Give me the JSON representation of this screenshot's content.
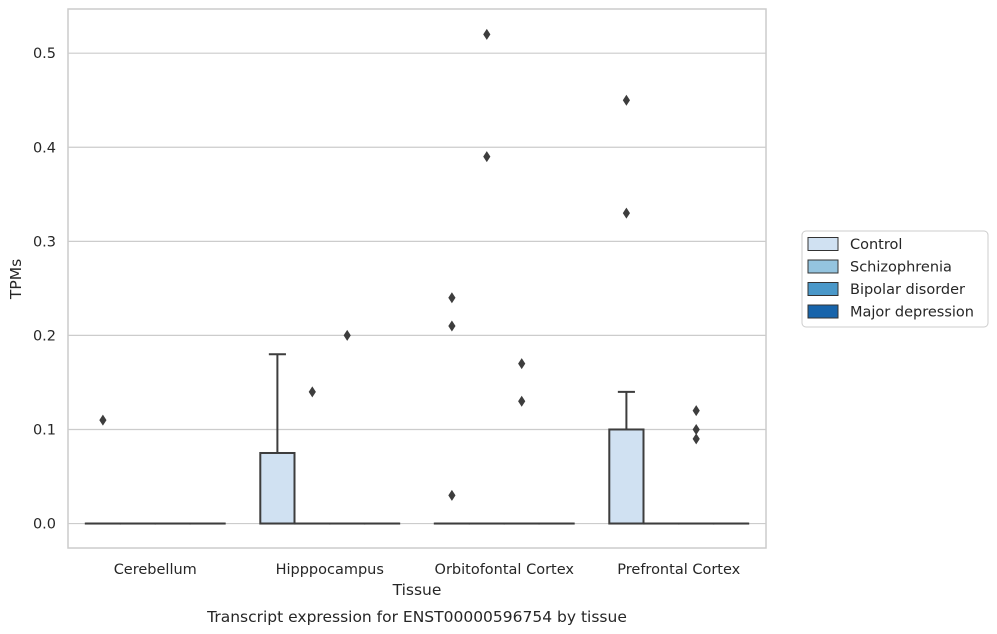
{
  "chart_data": {
    "type": "box",
    "title": "",
    "caption": "Transcript expression for ENST00000596754 by tissue",
    "xlabel": "Tissue",
    "ylabel": "TPMs",
    "ylim": [
      -0.026,
      0.547
    ],
    "yticks": [
      "0.0",
      "0.1",
      "0.2",
      "0.3",
      "0.4",
      "0.5"
    ],
    "grid": true,
    "legend_position": "right",
    "categories": [
      "Cerebellum",
      "Hipppocampus",
      "Orbitofontal Cortex",
      "Prefrontal Cortex"
    ],
    "series": [
      {
        "name": "Control",
        "color": "#d0e1f2",
        "boxes": [
          {
            "q1": 0,
            "median": 0,
            "q3": 0,
            "whisker_low": 0,
            "whisker_high": 0,
            "outliers": [
              0.11
            ]
          },
          {
            "q1": 0,
            "median": 0,
            "q3": 0.075,
            "whisker_low": 0,
            "whisker_high": 0.18,
            "outliers": []
          },
          {
            "q1": 0,
            "median": 0,
            "q3": 0,
            "whisker_low": 0,
            "whisker_high": 0,
            "outliers": [
              0.03,
              0.21,
              0.24
            ]
          },
          {
            "q1": 0,
            "median": 0,
            "q3": 0.1,
            "whisker_low": 0,
            "whisker_high": 0.14,
            "outliers": [
              0.33,
              0.45
            ]
          }
        ]
      },
      {
        "name": "Schizophrenia",
        "color": "#94c4df",
        "boxes": [
          {
            "q1": 0,
            "median": 0,
            "q3": 0,
            "whisker_low": 0,
            "whisker_high": 0,
            "outliers": []
          },
          {
            "q1": 0,
            "median": 0,
            "q3": 0,
            "whisker_low": 0,
            "whisker_high": 0,
            "outliers": [
              0.14
            ]
          },
          {
            "q1": 0,
            "median": 0,
            "q3": 0,
            "whisker_low": 0,
            "whisker_high": 0,
            "outliers": [
              0.39,
              0.52
            ]
          },
          {
            "q1": 0,
            "median": 0,
            "q3": 0,
            "whisker_low": 0,
            "whisker_high": 0,
            "outliers": []
          }
        ]
      },
      {
        "name": "Bipolar disorder",
        "color": "#4a98c9",
        "boxes": [
          {
            "q1": 0,
            "median": 0,
            "q3": 0,
            "whisker_low": 0,
            "whisker_high": 0,
            "outliers": []
          },
          {
            "q1": 0,
            "median": 0,
            "q3": 0,
            "whisker_low": 0,
            "whisker_high": 0,
            "outliers": [
              0.2
            ]
          },
          {
            "q1": 0,
            "median": 0,
            "q3": 0,
            "whisker_low": 0,
            "whisker_high": 0,
            "outliers": [
              0.13,
              0.17
            ]
          },
          {
            "q1": 0,
            "median": 0,
            "q3": 0,
            "whisker_low": 0,
            "whisker_high": 0,
            "outliers": [
              0.09,
              0.1,
              0.12
            ]
          }
        ]
      },
      {
        "name": "Major depression",
        "color": "#1764ab",
        "boxes": [
          {
            "q1": 0,
            "median": 0,
            "q3": 0,
            "whisker_low": 0,
            "whisker_high": 0,
            "outliers": []
          },
          {
            "q1": 0,
            "median": 0,
            "q3": 0,
            "whisker_low": 0,
            "whisker_high": 0,
            "outliers": []
          },
          {
            "q1": 0,
            "median": 0,
            "q3": 0,
            "whisker_low": 0,
            "whisker_high": 0,
            "outliers": []
          },
          {
            "q1": 0,
            "median": 0,
            "q3": 0,
            "whisker_low": 0,
            "whisker_high": 0,
            "outliers": []
          }
        ]
      }
    ],
    "colors": {
      "grid": "#cccccc",
      "frame": "#cccccc",
      "line": "#3d3d3d",
      "text": "#262626"
    }
  }
}
